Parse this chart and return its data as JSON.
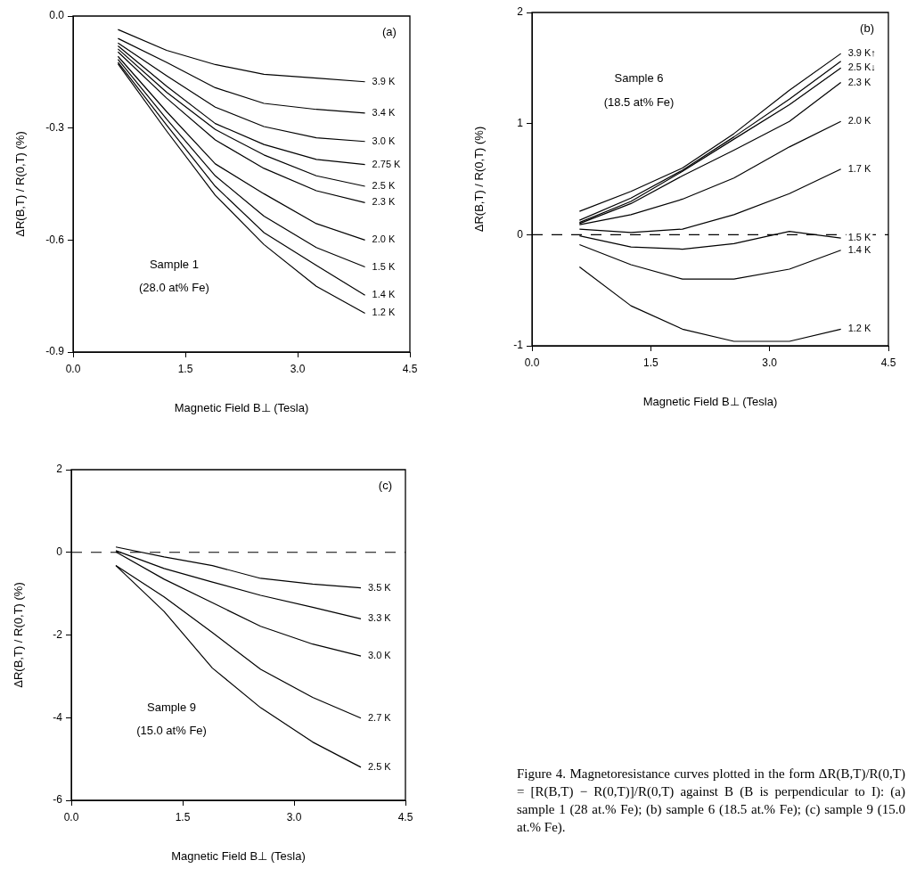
{
  "chart_data": [
    {
      "type": "line",
      "xlabel": "Magnetic Field B⊥ (Tesla)",
      "ylabel": "ΔR(B,T) / R(0,T) (%)",
      "marker": "none",
      "legend": false,
      "xlim": [
        0,
        4.5
      ],
      "xticks": [
        {
          "value": 0,
          "label": "0.0"
        },
        {
          "value": 1.5,
          "label": "1.5"
        },
        {
          "value": 3,
          "label": "3.0"
        },
        {
          "value": 4.5,
          "label": "4.5"
        }
      ],
      "ylim": [
        -0.9,
        0
      ],
      "yticks": [
        {
          "value": 0,
          "label": "0.0"
        },
        {
          "value": -0.3,
          "label": "-0.3"
        },
        {
          "value": -0.6,
          "label": "-0.6"
        },
        {
          "value": -0.9,
          "label": "-0.9"
        }
      ],
      "x": [
        0.6,
        1.25,
        1.9,
        2.55,
        3.25,
        3.9
      ],
      "annotations": [
        "(a)",
        "Sample 1",
        "(28.0 at% Fe)"
      ],
      "series": [
        {
          "name": "3.9 K",
          "color": "#000000",
          "values": [
            -0.036,
            -0.092,
            -0.13,
            -0.156,
            -0.166,
            -0.176
          ]
        },
        {
          "name": "3.4 K",
          "color": "#000000",
          "values": [
            -0.06,
            -0.124,
            -0.192,
            -0.234,
            -0.25,
            -0.26
          ]
        },
        {
          "name": "3.0 K",
          "color": "#000000",
          "values": [
            -0.072,
            -0.16,
            -0.244,
            -0.296,
            -0.326,
            -0.336
          ]
        },
        {
          "name": "2.75 K",
          "color": "#000000",
          "values": [
            -0.08,
            -0.188,
            -0.288,
            -0.344,
            -0.384,
            -0.398
          ]
        },
        {
          "name": "2.5 K",
          "color": "#000000",
          "values": [
            -0.088,
            -0.204,
            -0.304,
            -0.372,
            -0.428,
            -0.456
          ]
        },
        {
          "name": "2.3 K",
          "color": "#000000",
          "values": [
            -0.096,
            -0.22,
            -0.332,
            -0.408,
            -0.468,
            -0.5
          ]
        },
        {
          "name": "2.0 K",
          "color": "#000000",
          "values": [
            -0.108,
            -0.256,
            -0.396,
            -0.476,
            -0.556,
            -0.6
          ]
        },
        {
          "name": "1.5 K",
          "color": "#000000",
          "values": [
            -0.116,
            -0.276,
            -0.428,
            -0.536,
            -0.62,
            -0.672
          ]
        },
        {
          "name": "1.4 K",
          "color": "#000000",
          "values": [
            -0.124,
            -0.292,
            -0.456,
            -0.58,
            -0.668,
            -0.748
          ]
        },
        {
          "name": "1.2 K",
          "color": "#000000",
          "values": [
            -0.128,
            -0.308,
            -0.48,
            -0.612,
            -0.724,
            -0.796
          ]
        }
      ]
    },
    {
      "type": "line",
      "xlabel": "Magnetic Field B⊥ (Tesla)",
      "ylabel": "ΔR(B,T) / R(0,T) (%)",
      "marker": "none",
      "legend": false,
      "xlim": [
        0,
        4.5
      ],
      "xticks": [
        {
          "value": 0,
          "label": "0.0"
        },
        {
          "value": 1.5,
          "label": "1.5"
        },
        {
          "value": 3,
          "label": "3.0"
        },
        {
          "value": 4.5,
          "label": "4.5"
        }
      ],
      "ylim": [
        -1,
        2
      ],
      "yticks": [
        2,
        1,
        0,
        -1
      ],
      "x": [
        0.6,
        1.25,
        1.9,
        2.55,
        3.25,
        3.9
      ],
      "annotations": [
        "(b)",
        "Sample 6",
        "(18.5 at% Fe)"
      ],
      "ref_lines": [
        {
          "axis": "y",
          "value": 0,
          "line_style": "dashed",
          "color": "#000000"
        }
      ],
      "series": [
        {
          "name": "3.9 K↑",
          "color": "#000000",
          "values": [
            0.21,
            0.39,
            0.6,
            0.91,
            1.3,
            1.63
          ]
        },
        {
          "color": "#000000",
          "values": [
            0.13,
            0.33,
            0.58,
            0.88,
            1.22,
            1.56
          ]
        },
        {
          "name": "2.5 K↓",
          "color": "#000000",
          "values": [
            0.11,
            0.3,
            0.57,
            0.86,
            1.17,
            1.5
          ]
        },
        {
          "name": "2.3 K",
          "color": "#000000",
          "values": [
            0.1,
            0.28,
            0.53,
            0.76,
            1.02,
            1.37
          ]
        },
        {
          "name": "2.0 K",
          "color": "#000000",
          "values": [
            0.09,
            0.18,
            0.32,
            0.51,
            0.79,
            1.02
          ]
        },
        {
          "name": "1.7 K",
          "color": "#000000",
          "values": [
            0.05,
            0.02,
            0.05,
            0.18,
            0.37,
            0.59
          ]
        },
        {
          "name": "1.5 K",
          "color": "#000000",
          "values": [
            -0.01,
            -0.11,
            -0.13,
            -0.08,
            0.03,
            -0.03
          ]
        },
        {
          "name": "1.4 K",
          "color": "#000000",
          "values": [
            -0.09,
            -0.27,
            -0.4,
            -0.4,
            -0.31,
            -0.14
          ]
        },
        {
          "name": "1.2 K",
          "color": "#000000",
          "values": [
            -0.29,
            -0.64,
            -0.85,
            -0.96,
            -0.96,
            -0.85
          ]
        }
      ]
    },
    {
      "type": "line",
      "xlabel": "Magnetic Field B⊥ (Tesla)",
      "ylabel": "ΔR(B,T) / R(0,T) (%)",
      "marker": "none",
      "legend": false,
      "xlim": [
        0,
        4.5
      ],
      "xticks": [
        {
          "value": 0,
          "label": "0.0"
        },
        {
          "value": 1.5,
          "label": "1.5"
        },
        {
          "value": 3,
          "label": "3.0"
        },
        {
          "value": 4.5,
          "label": "4.5"
        }
      ],
      "ylim": [
        -6,
        2
      ],
      "yticks": [
        2,
        0,
        -2,
        -4,
        -6
      ],
      "x": [
        0.6,
        1.25,
        1.9,
        2.55,
        3.25,
        3.9
      ],
      "annotations": [
        "(c)",
        "Sample 9",
        "(15.0 at% Fe)"
      ],
      "ref_lines": [
        {
          "axis": "y",
          "value": 0,
          "line_style": "dashed",
          "color": "#000000"
        }
      ],
      "series": [
        {
          "name": "3.5 K",
          "color": "#000000",
          "values": [
            0.13,
            -0.11,
            -0.32,
            -0.63,
            -0.77,
            -0.86
          ]
        },
        {
          "name": "3.3 K",
          "color": "#000000",
          "values": [
            0.04,
            -0.39,
            -0.72,
            -1.04,
            -1.33,
            -1.61
          ]
        },
        {
          "name": "3.0 K",
          "color": "#000000",
          "values": [
            0.01,
            -0.65,
            -1.22,
            -1.79,
            -2.22,
            -2.51
          ]
        },
        {
          "name": "2.7 K",
          "color": "#000000",
          "values": [
            -0.32,
            -1.08,
            -1.94,
            -2.83,
            -3.51,
            -4.01
          ]
        },
        {
          "name": "2.5 K",
          "color": "#000000",
          "values": [
            -0.32,
            -1.43,
            -2.8,
            -3.76,
            -4.59,
            -5.2
          ]
        }
      ]
    },
    {
      "type": "other",
      "annotations": [
        "Figure 4. Magnetoresistance curves plotted in the form ΔR(B,T)/R(0,T) = [R(B,T) − R(0,T)]/R(0,T) against B (B is perpendicular to I): (a) sample 1 (28 at.% Fe); (b) sample 6 (18.5 at.% Fe); (c) sample 9 (15.0 at.% Fe)."
      ]
    }
  ]
}
